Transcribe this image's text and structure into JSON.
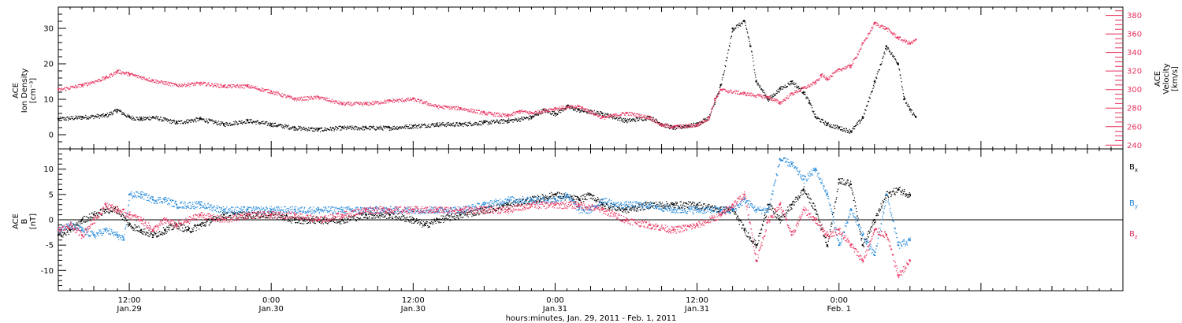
{
  "colors": {
    "black": "#000000",
    "red": "#e8315d",
    "blue": "#1f86d9"
  },
  "xaxis": {
    "title": "hours:minutes, Jan. 29, 2011 - Feb.  1, 2011",
    "range_hours": [
      6,
      96
    ],
    "ticks": [
      {
        "t": 12,
        "line1": "12:00",
        "line2": "Jan.29"
      },
      {
        "t": 24,
        "line1": "0:00",
        "line2": "Jan.30"
      },
      {
        "t": 36,
        "line1": "12:00",
        "line2": "Jan.30"
      },
      {
        "t": 48,
        "line1": "0:00",
        "line2": "Jan.31"
      },
      {
        "t": 60,
        "line1": "12:00",
        "line2": "Jan.31"
      },
      {
        "t": 72,
        "line1": "0:00",
        "line2": "Feb. 1"
      }
    ]
  },
  "chart_data": [
    {
      "type": "scatter",
      "panel": "top",
      "ylabel_left": [
        "ACE",
        "Ion Density",
        "[cm⁻³]"
      ],
      "ylabel_right": [
        "ACE",
        "Velocity",
        "[km/s]"
      ],
      "ylim_left": [
        -4,
        36
      ],
      "ylim_right": [
        236,
        389
      ],
      "yticks_left": [
        0,
        10,
        20,
        30
      ],
      "yticks_right": [
        240,
        260,
        280,
        300,
        320,
        340,
        360,
        380
      ],
      "series": [
        {
          "axis": "left",
          "color": "black",
          "points": [
            [
              6,
              4.5
            ],
            [
              8,
              5
            ],
            [
              10,
              5.5
            ],
            [
              11,
              7
            ],
            [
              12,
              5
            ],
            [
              13,
              4.5
            ],
            [
              14,
              5
            ],
            [
              16,
              3.5
            ],
            [
              18,
              4.5
            ],
            [
              20,
              3
            ],
            [
              22,
              4
            ],
            [
              24,
              3
            ],
            [
              26,
              2
            ],
            [
              28,
              1.5
            ],
            [
              30,
              2
            ],
            [
              32,
              2
            ],
            [
              34,
              2
            ],
            [
              36,
              2.5
            ],
            [
              38,
              3
            ],
            [
              40,
              3
            ],
            [
              42,
              3.5
            ],
            [
              44,
              4
            ],
            [
              46,
              5
            ],
            [
              47,
              7
            ],
            [
              48,
              6
            ],
            [
              49,
              8
            ],
            [
              50,
              7
            ],
            [
              52,
              6
            ],
            [
              54,
              4
            ],
            [
              56,
              5
            ],
            [
              57,
              3
            ],
            [
              58,
              2
            ],
            [
              60,
              3
            ],
            [
              61,
              5
            ],
            [
              62,
              14
            ],
            [
              63,
              30
            ],
            [
              64,
              32
            ],
            [
              64.5,
              25
            ],
            [
              65,
              15
            ],
            [
              66,
              10
            ],
            [
              67,
              13
            ],
            [
              68,
              15
            ],
            [
              69,
              12
            ],
            [
              69.5,
              9
            ],
            [
              70,
              5
            ],
            [
              71,
              3
            ],
            [
              72,
              2
            ],
            [
              73,
              1
            ],
            [
              74,
              5
            ],
            [
              75,
              15
            ],
            [
              76,
              25
            ],
            [
              77,
              20
            ],
            [
              77.5,
              10
            ],
            [
              78,
              7
            ],
            [
              78.5,
              5
            ]
          ]
        },
        {
          "axis": "right",
          "color": "red",
          "points": [
            [
              6,
              300
            ],
            [
              8,
              305
            ],
            [
              10,
              313
            ],
            [
              11,
              320
            ],
            [
              12,
              317
            ],
            [
              14,
              310
            ],
            [
              16,
              305
            ],
            [
              18,
              307
            ],
            [
              20,
              304
            ],
            [
              22,
              304
            ],
            [
              24,
              298
            ],
            [
              26,
              290
            ],
            [
              28,
              292
            ],
            [
              30,
              285
            ],
            [
              32,
              285
            ],
            [
              34,
              288
            ],
            [
              36,
              290
            ],
            [
              38,
              282
            ],
            [
              40,
              280
            ],
            [
              42,
              275
            ],
            [
              44,
              272
            ],
            [
              45,
              277
            ],
            [
              46,
              275
            ],
            [
              48,
              280
            ],
            [
              50,
              282
            ],
            [
              52,
              270
            ],
            [
              54,
              275
            ],
            [
              56,
              270
            ],
            [
              57,
              262
            ],
            [
              58,
              260
            ],
            [
              60,
              262
            ],
            [
              61,
              270
            ],
            [
              61.5,
              290
            ],
            [
              62,
              300
            ],
            [
              64,
              296
            ],
            [
              66,
              292
            ],
            [
              67,
              286
            ],
            [
              68,
              296
            ],
            [
              69,
              302
            ],
            [
              70,
              308
            ],
            [
              70.5,
              316
            ],
            [
              71,
              312
            ],
            [
              72,
              322
            ],
            [
              73,
              326
            ],
            [
              74,
              350
            ],
            [
              75,
              372
            ],
            [
              76,
              366
            ],
            [
              77,
              356
            ],
            [
              78,
              350
            ],
            [
              78.5,
              354
            ]
          ]
        }
      ]
    },
    {
      "type": "scatter",
      "panel": "bottom",
      "ylabel_left": [
        "ACE",
        "B",
        "[nT]"
      ],
      "ylim": [
        -14,
        14
      ],
      "yticks": [
        -10,
        -5,
        0,
        5,
        10
      ],
      "zero_line": true,
      "legend": [
        "Bx",
        "By",
        "Bz"
      ],
      "legend_position": "right",
      "series": [
        {
          "name": "Bx",
          "color": "black",
          "points": [
            [
              6,
              -3
            ],
            [
              7,
              -2
            ],
            [
              8,
              0
            ],
            [
              9,
              1
            ],
            [
              10,
              2
            ],
            [
              11,
              2
            ],
            [
              12,
              -1
            ],
            [
              13,
              -2
            ],
            [
              14,
              -3
            ],
            [
              15,
              -2
            ],
            [
              16,
              -1
            ],
            [
              17,
              -2
            ],
            [
              18,
              -1
            ],
            [
              19,
              0
            ],
            [
              20,
              1
            ],
            [
              22,
              1
            ],
            [
              24,
              1
            ],
            [
              26,
              0
            ],
            [
              28,
              0
            ],
            [
              30,
              0
            ],
            [
              32,
              1
            ],
            [
              34,
              1
            ],
            [
              36,
              0
            ],
            [
              37,
              -1
            ],
            [
              38,
              0
            ],
            [
              40,
              1
            ],
            [
              42,
              2
            ],
            [
              44,
              3
            ],
            [
              46,
              4
            ],
            [
              48,
              5
            ],
            [
              50,
              4
            ],
            [
              51,
              5
            ],
            [
              52,
              3
            ],
            [
              54,
              2
            ],
            [
              56,
              3
            ],
            [
              58,
              3
            ],
            [
              60,
              3
            ],
            [
              62,
              2
            ],
            [
              63,
              2
            ],
            [
              64,
              -2
            ],
            [
              65,
              -5
            ],
            [
              66,
              3
            ],
            [
              67,
              0
            ],
            [
              68,
              3
            ],
            [
              69,
              6
            ],
            [
              70,
              2
            ],
            [
              71,
              -5
            ],
            [
              72,
              8
            ],
            [
              73,
              7
            ],
            [
              74,
              -5
            ],
            [
              75,
              0
            ],
            [
              76,
              5
            ],
            [
              77,
              6
            ],
            [
              78,
              5
            ]
          ]
        },
        {
          "name": "By",
          "color": "blue",
          "points": [
            [
              6,
              -2
            ],
            [
              7,
              -1
            ],
            [
              8,
              -2
            ],
            [
              9,
              -3
            ],
            [
              10,
              -2
            ],
            [
              11,
              -3
            ],
            [
              11.5,
              -4
            ],
            [
              12,
              5
            ],
            [
              13,
              5
            ],
            [
              14,
              4
            ],
            [
              15,
              4
            ],
            [
              16,
              3
            ],
            [
              18,
              3
            ],
            [
              20,
              2
            ],
            [
              22,
              2
            ],
            [
              24,
              2
            ],
            [
              26,
              2
            ],
            [
              28,
              2
            ],
            [
              30,
              2
            ],
            [
              32,
              2
            ],
            [
              34,
              2
            ],
            [
              36,
              2
            ],
            [
              38,
              2
            ],
            [
              40,
              2
            ],
            [
              42,
              3
            ],
            [
              44,
              4
            ],
            [
              46,
              4
            ],
            [
              48,
              4
            ],
            [
              49,
              5
            ],
            [
              50,
              2
            ],
            [
              51,
              2
            ],
            [
              52,
              4
            ],
            [
              53,
              3
            ],
            [
              54,
              3
            ],
            [
              56,
              3
            ],
            [
              58,
              2
            ],
            [
              60,
              2
            ],
            [
              62,
              2
            ],
            [
              63,
              2
            ],
            [
              64,
              4
            ],
            [
              65,
              2
            ],
            [
              66,
              2
            ],
            [
              67,
              12
            ],
            [
              68,
              11
            ],
            [
              69,
              8
            ],
            [
              70,
              10
            ],
            [
              71,
              5
            ],
            [
              72,
              -5
            ],
            [
              73,
              2
            ],
            [
              74,
              -3
            ],
            [
              75,
              -7
            ],
            [
              76,
              5
            ],
            [
              77,
              -5
            ],
            [
              78,
              -4
            ]
          ]
        },
        {
          "name": "Bz",
          "color": "red",
          "points": [
            [
              6,
              -2
            ],
            [
              7,
              -1
            ],
            [
              8,
              -3
            ],
            [
              9,
              0
            ],
            [
              10,
              3
            ],
            [
              11,
              2
            ],
            [
              12,
              1
            ],
            [
              13,
              0
            ],
            [
              14,
              -2
            ],
            [
              15,
              0
            ],
            [
              16,
              -1
            ],
            [
              17,
              0
            ],
            [
              18,
              1
            ],
            [
              20,
              0
            ],
            [
              22,
              1
            ],
            [
              24,
              1
            ],
            [
              26,
              1
            ],
            [
              28,
              0
            ],
            [
              30,
              1
            ],
            [
              32,
              2
            ],
            [
              34,
              2
            ],
            [
              36,
              2
            ],
            [
              38,
              2
            ],
            [
              40,
              2
            ],
            [
              42,
              2
            ],
            [
              44,
              2
            ],
            [
              46,
              3
            ],
            [
              48,
              3
            ],
            [
              50,
              3
            ],
            [
              52,
              2
            ],
            [
              54,
              0
            ],
            [
              56,
              -1
            ],
            [
              58,
              -2
            ],
            [
              60,
              -1
            ],
            [
              62,
              1
            ],
            [
              63,
              3
            ],
            [
              64,
              5
            ],
            [
              65,
              -8
            ],
            [
              66,
              0
            ],
            [
              67,
              3
            ],
            [
              68,
              -3
            ],
            [
              69,
              2
            ],
            [
              70,
              0
            ],
            [
              71,
              -3
            ],
            [
              72,
              -2
            ],
            [
              73,
              -5
            ],
            [
              74,
              -8
            ],
            [
              75,
              -2
            ],
            [
              76,
              -3
            ],
            [
              77,
              -11
            ],
            [
              78,
              -8
            ]
          ]
        }
      ]
    }
  ]
}
